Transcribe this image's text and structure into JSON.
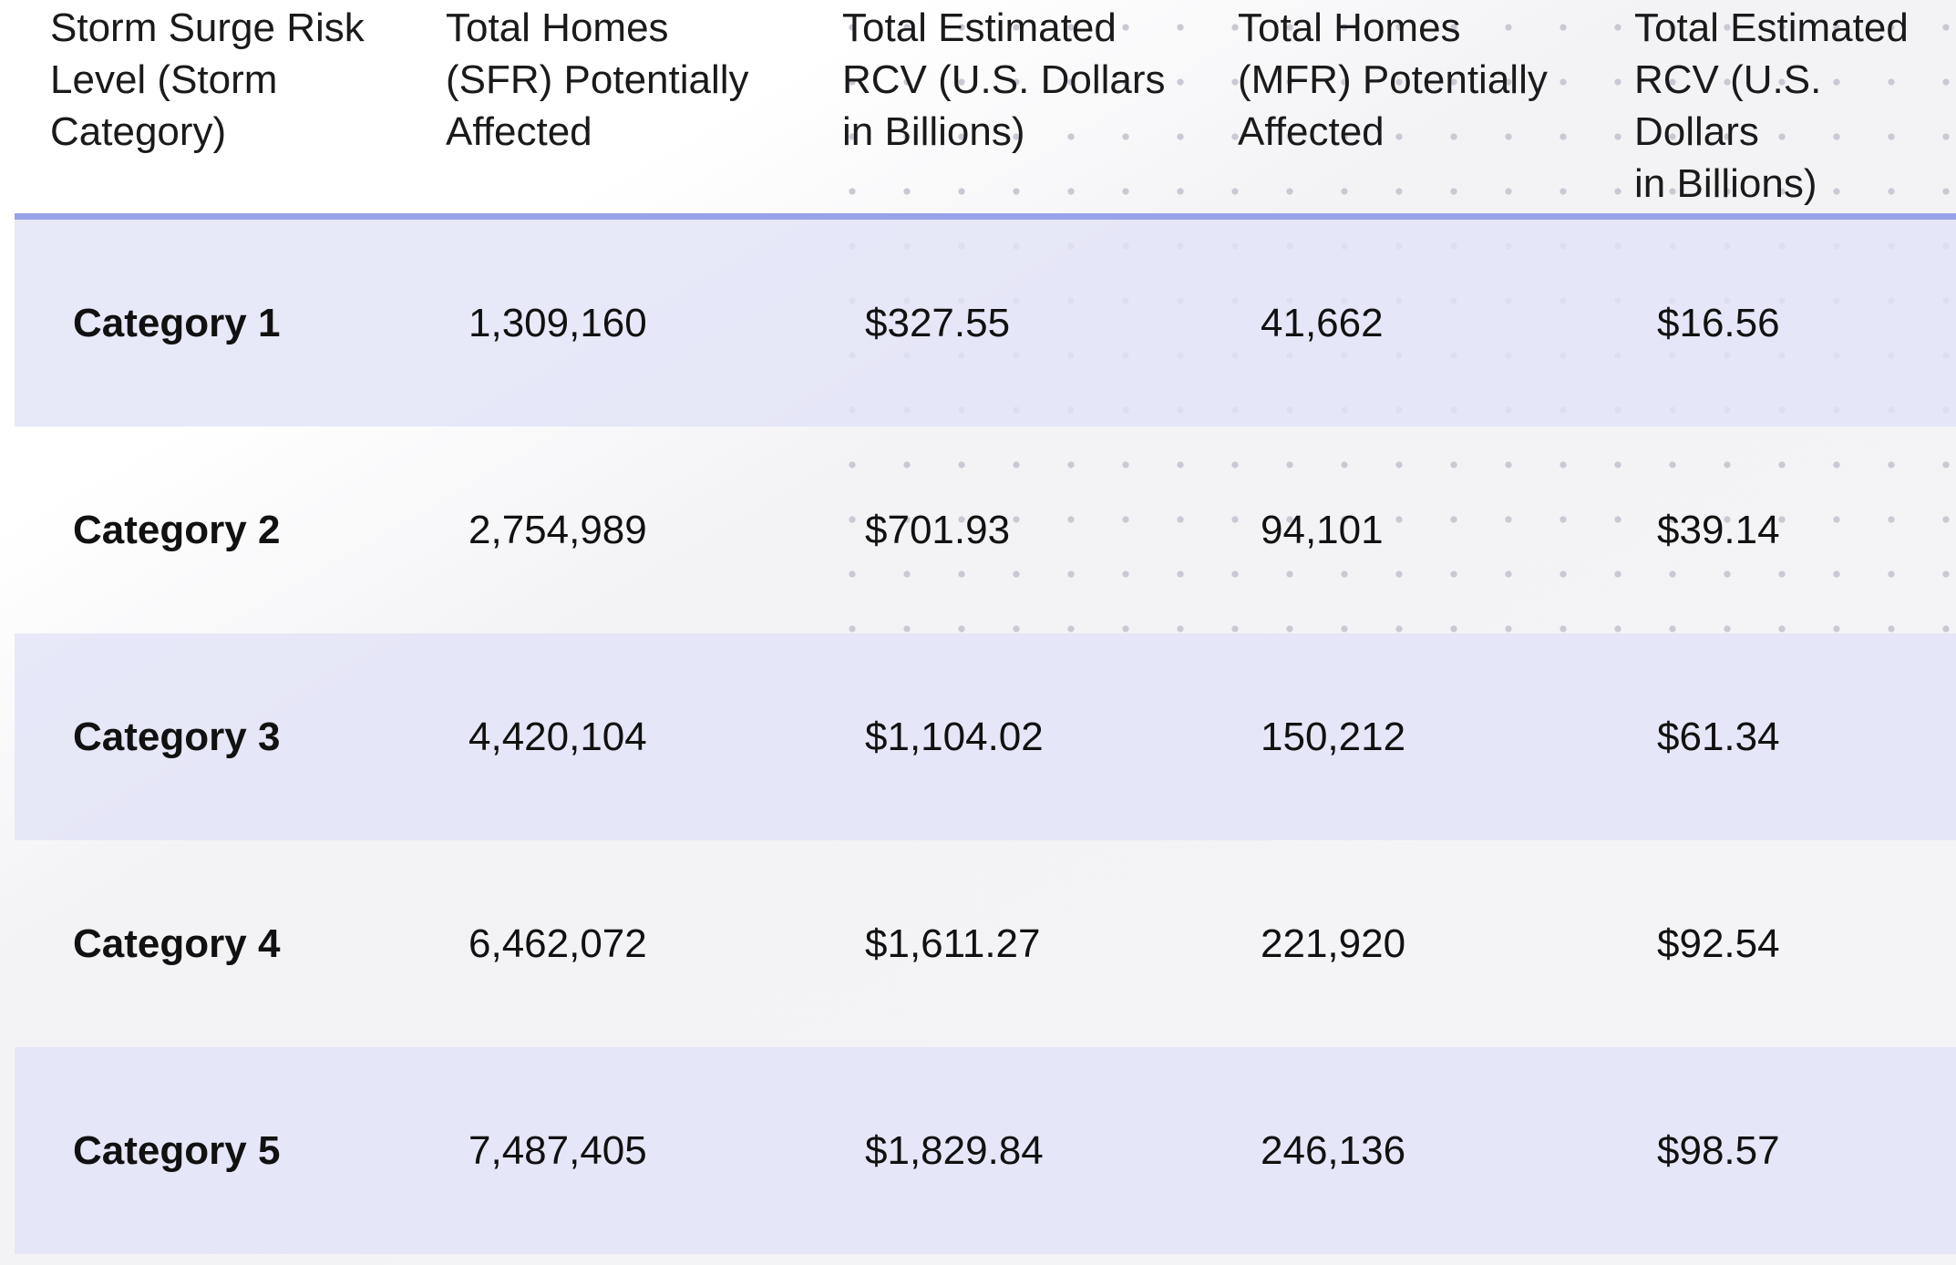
{
  "table": {
    "headers": [
      "Storm Surge Risk\nLevel (Storm\nCategory)",
      "Total Homes\n(SFR) Potentially\nAffected",
      "Total Estimated\nRCV (U.S. Dollars\nin Billions)",
      "Total Homes\n(MFR) Potentially\nAffected",
      "Total Estimated\nRCV (U.S. Dollars\nin Billions)"
    ],
    "rows": [
      [
        "Category 1",
        "1,309,160",
        "$327.55",
        "41,662",
        "$16.56"
      ],
      [
        "Category 2",
        "2,754,989",
        "$701.93",
        "94,101",
        "$39.14"
      ],
      [
        "Category 3",
        "4,420,104",
        "$1,104.02",
        "150,212",
        "$61.34"
      ],
      [
        "Category 4",
        "6,462,072",
        "$1,611.27",
        "221,920",
        "$92.54"
      ],
      [
        "Category 5",
        "7,487,405",
        "$1,829.84",
        "246,136",
        "$98.57"
      ]
    ]
  },
  "colors": {
    "header_rule": "#98a2e8",
    "shaded_row": "#e2e3f6",
    "text": "#111111",
    "dot_pattern": "#c9c9d4"
  }
}
